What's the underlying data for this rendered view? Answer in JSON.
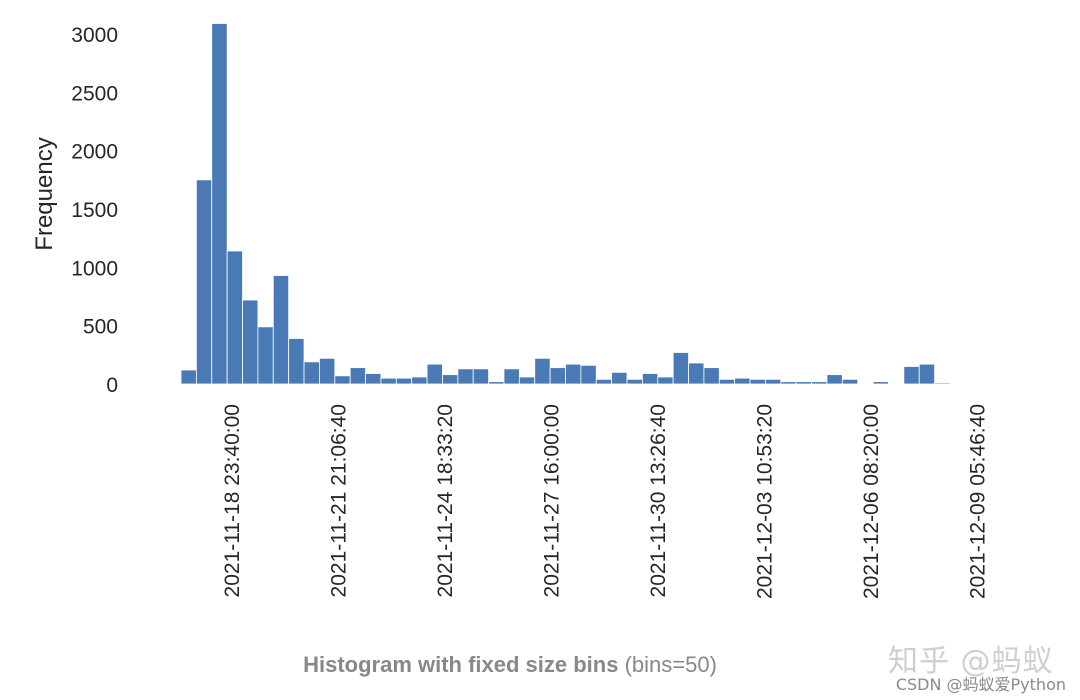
{
  "chart_data": {
    "type": "bar",
    "caption_bold": "Histogram with fixed size bins",
    "caption_rest": " (bins=50)",
    "ylabel": "Frequency",
    "ylim": [
      0,
      3150
    ],
    "yticks": [
      0,
      500,
      1000,
      1500,
      2000,
      2500,
      3000
    ],
    "xticks": [
      "2021-11-18 23:40:00",
      "2021-11-21 21:06:40",
      "2021-11-24 18:33:20",
      "2021-11-27 16:00:00",
      "2021-11-30 13:26:40",
      "2021-12-03 10:53:20",
      "2021-12-06 08:20:00",
      "2021-12-09 05:46:40"
    ],
    "bar_color": "#4a7ab5",
    "values": [
      120,
      1750,
      3090,
      1140,
      720,
      490,
      930,
      390,
      190,
      220,
      70,
      140,
      90,
      50,
      50,
      60,
      170,
      80,
      130,
      130,
      20,
      130,
      60,
      220,
      140,
      170,
      160,
      40,
      100,
      40,
      90,
      60,
      270,
      180,
      140,
      40,
      50,
      40,
      40,
      20,
      20,
      20,
      80,
      40,
      0,
      20,
      0,
      150,
      170,
      10
    ],
    "grid": false,
    "legend": "none"
  },
  "watermark": {
    "main": "知乎 @蚂蚁",
    "sub": "CSDN @蚂蚁爱Python"
  }
}
